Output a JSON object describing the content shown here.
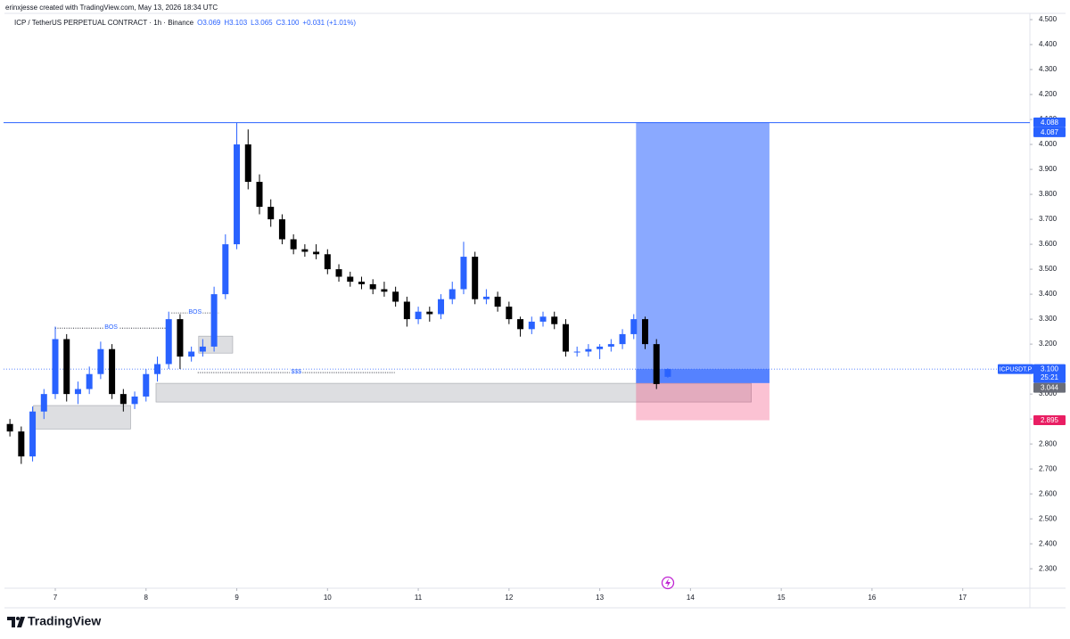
{
  "header": "erinxjesse created with TradingView.com, May 13, 2026 18:34 UTC",
  "footer": "TradingView",
  "chart_data": {
    "type": "candlestick",
    "title": "ICP / TetherUS PERPETUAL CONTRACT · 1h · Binance",
    "ohlc_legend": [
      "O3.069",
      "H3.103",
      "L3.065",
      "C3.100",
      "+0.031 (+1.01%)"
    ],
    "up_color": "#2962ff",
    "down_color": "#000000",
    "xlim": [
      6.43,
      17.74
    ],
    "xticks": [
      7,
      8,
      9,
      10,
      11,
      12,
      13,
      14,
      15,
      16,
      17
    ],
    "ylim": [
      2.24,
      4.55
    ],
    "yticks": [
      {
        "value": 2.3,
        "label": "2.300"
      },
      {
        "value": 2.4,
        "label": "2.400"
      },
      {
        "value": 2.5,
        "label": "2.500"
      },
      {
        "value": 2.6,
        "label": "2.600"
      },
      {
        "value": 2.7,
        "label": "2.700"
      },
      {
        "value": 2.8,
        "label": "2.800"
      },
      {
        "value": 2.9,
        "label": "2.900"
      },
      {
        "value": 3.0,
        "label": "3.000"
      },
      {
        "value": 3.1,
        "label": "3.100"
      },
      {
        "value": 3.2,
        "label": "3.200"
      },
      {
        "value": 3.3,
        "label": "3.300"
      },
      {
        "value": 3.4,
        "label": "3.400"
      },
      {
        "value": 3.5,
        "label": "3.500"
      },
      {
        "value": 3.6,
        "label": "3.600"
      },
      {
        "value": 3.7,
        "label": "3.700"
      },
      {
        "value": 3.8,
        "label": "3.800"
      },
      {
        "value": 3.9,
        "label": "3.900"
      },
      {
        "value": 4.0,
        "label": "4.000"
      },
      {
        "value": 4.1,
        "label": "4.100"
      },
      {
        "value": 4.2,
        "label": "4.200"
      },
      {
        "value": 4.3,
        "label": "4.300"
      },
      {
        "value": 4.4,
        "label": "4.400"
      },
      {
        "value": 4.5,
        "label": "4.500"
      }
    ],
    "x": [
      6.5,
      6.625,
      6.75,
      6.875,
      7.0,
      7.125,
      7.25,
      7.375,
      7.5,
      7.625,
      7.75,
      7.875,
      8.0,
      8.125,
      8.25,
      8.375,
      8.5,
      8.625,
      8.75,
      8.875,
      9.0,
      9.125,
      9.25,
      9.375,
      9.5,
      9.625,
      9.75,
      9.875,
      10.0,
      10.125,
      10.25,
      10.375,
      10.5,
      10.625,
      10.75,
      10.875,
      11.0,
      11.125,
      11.25,
      11.375,
      11.5,
      11.625,
      11.75,
      11.875,
      12.0,
      12.125,
      12.25,
      12.375,
      12.5,
      12.625,
      12.75,
      12.875,
      13.0,
      13.125,
      13.25,
      13.375,
      13.5,
      13.625,
      13.75
    ],
    "candles": [
      [
        2.88,
        2.9,
        2.83,
        2.85
      ],
      [
        2.85,
        2.87,
        2.72,
        2.75
      ],
      [
        2.75,
        2.95,
        2.73,
        2.93
      ],
      [
        2.93,
        3.02,
        2.9,
        3.0
      ],
      [
        3.0,
        3.27,
        2.98,
        3.22
      ],
      [
        3.22,
        3.24,
        2.97,
        3.0
      ],
      [
        3.0,
        3.05,
        2.96,
        3.02
      ],
      [
        3.02,
        3.11,
        3.0,
        3.08
      ],
      [
        3.08,
        3.21,
        3.06,
        3.18
      ],
      [
        3.18,
        3.2,
        2.98,
        3.0
      ],
      [
        3.0,
        3.02,
        2.93,
        2.96
      ],
      [
        2.96,
        3.01,
        2.94,
        2.99
      ],
      [
        2.99,
        3.1,
        2.97,
        3.08
      ],
      [
        3.08,
        3.15,
        3.05,
        3.12
      ],
      [
        3.12,
        3.33,
        3.1,
        3.3
      ],
      [
        3.3,
        3.32,
        3.1,
        3.15
      ],
      [
        3.15,
        3.19,
        3.13,
        3.17
      ],
      [
        3.17,
        3.22,
        3.15,
        3.19
      ],
      [
        3.19,
        3.43,
        3.17,
        3.4
      ],
      [
        3.4,
        3.64,
        3.38,
        3.6
      ],
      [
        3.6,
        4.087,
        3.58,
        4.0
      ],
      [
        4.0,
        4.06,
        3.82,
        3.85
      ],
      [
        3.85,
        3.88,
        3.72,
        3.75
      ],
      [
        3.75,
        3.78,
        3.67,
        3.7
      ],
      [
        3.7,
        3.72,
        3.6,
        3.62
      ],
      [
        3.62,
        3.64,
        3.56,
        3.58
      ],
      [
        3.58,
        3.6,
        3.55,
        3.57
      ],
      [
        3.57,
        3.6,
        3.54,
        3.56
      ],
      [
        3.56,
        3.58,
        3.48,
        3.5
      ],
      [
        3.5,
        3.52,
        3.45,
        3.47
      ],
      [
        3.47,
        3.49,
        3.43,
        3.45
      ],
      [
        3.45,
        3.47,
        3.42,
        3.44
      ],
      [
        3.44,
        3.46,
        3.4,
        3.42
      ],
      [
        3.42,
        3.45,
        3.39,
        3.41
      ],
      [
        3.41,
        3.43,
        3.35,
        3.37
      ],
      [
        3.37,
        3.39,
        3.27,
        3.3
      ],
      [
        3.3,
        3.35,
        3.28,
        3.33
      ],
      [
        3.33,
        3.35,
        3.29,
        3.32
      ],
      [
        3.32,
        3.4,
        3.3,
        3.38
      ],
      [
        3.38,
        3.45,
        3.36,
        3.42
      ],
      [
        3.42,
        3.61,
        3.4,
        3.55
      ],
      [
        3.55,
        3.57,
        3.36,
        3.38
      ],
      [
        3.38,
        3.42,
        3.36,
        3.39
      ],
      [
        3.39,
        3.41,
        3.33,
        3.35
      ],
      [
        3.35,
        3.37,
        3.28,
        3.3
      ],
      [
        3.3,
        3.31,
        3.23,
        3.26
      ],
      [
        3.26,
        3.31,
        3.24,
        3.29
      ],
      [
        3.29,
        3.33,
        3.27,
        3.31
      ],
      [
        3.31,
        3.33,
        3.26,
        3.28
      ],
      [
        3.28,
        3.3,
        3.15,
        3.17
      ],
      [
        3.17,
        3.19,
        3.15,
        3.17
      ],
      [
        3.17,
        3.2,
        3.15,
        3.18
      ],
      [
        3.18,
        3.2,
        3.14,
        3.19
      ],
      [
        3.19,
        3.22,
        3.17,
        3.2
      ],
      [
        3.2,
        3.26,
        3.18,
        3.24
      ],
      [
        3.24,
        3.32,
        3.22,
        3.3
      ],
      [
        3.3,
        3.31,
        3.18,
        3.2
      ],
      [
        3.2,
        3.22,
        3.02,
        3.04
      ],
      [
        3.069,
        3.103,
        3.065,
        3.1
      ]
    ],
    "levels": [
      {
        "price": 4.087,
        "color": "#2962ff"
      }
    ],
    "zones": [
      {
        "x": [
          6.76,
          7.83
        ],
        "y": [
          2.86,
          2.954
        ]
      },
      {
        "x": [
          8.11,
          14.67
        ],
        "y": [
          2.968,
          3.043
        ]
      },
      {
        "x": [
          8.58,
          8.955
        ],
        "y": [
          3.164,
          3.232
        ]
      }
    ],
    "annotations": [
      {
        "text": "BOS",
        "x": [
          7.0,
          8.23
        ],
        "y": 3.264
      },
      {
        "text": "BOS",
        "x": [
          8.28,
          8.8
        ],
        "y": 3.325
      },
      {
        "text": "$$$",
        "x": [
          8.57,
          10.74
        ],
        "y": 3.086
      }
    ],
    "position": {
      "x": [
        13.4,
        14.87
      ],
      "entry": 3.044,
      "target": 4.088,
      "stop": 2.895
    },
    "price_labels": [
      {
        "value": 4.088,
        "label": "4.088",
        "color": "#2962ff"
      },
      {
        "value": 4.087,
        "label": "4.087",
        "color": "#2962ff"
      },
      {
        "value": 3.1,
        "label": "3.100",
        "color": "#2962ff"
      },
      {
        "value": 3.044,
        "label": "3.044",
        "color": "#6a6d78"
      },
      {
        "value": 2.895,
        "label": "2.895",
        "color": "#e91e63"
      }
    ],
    "countdown": "25:21",
    "symbol_tag": "ICPUSDT.P"
  }
}
